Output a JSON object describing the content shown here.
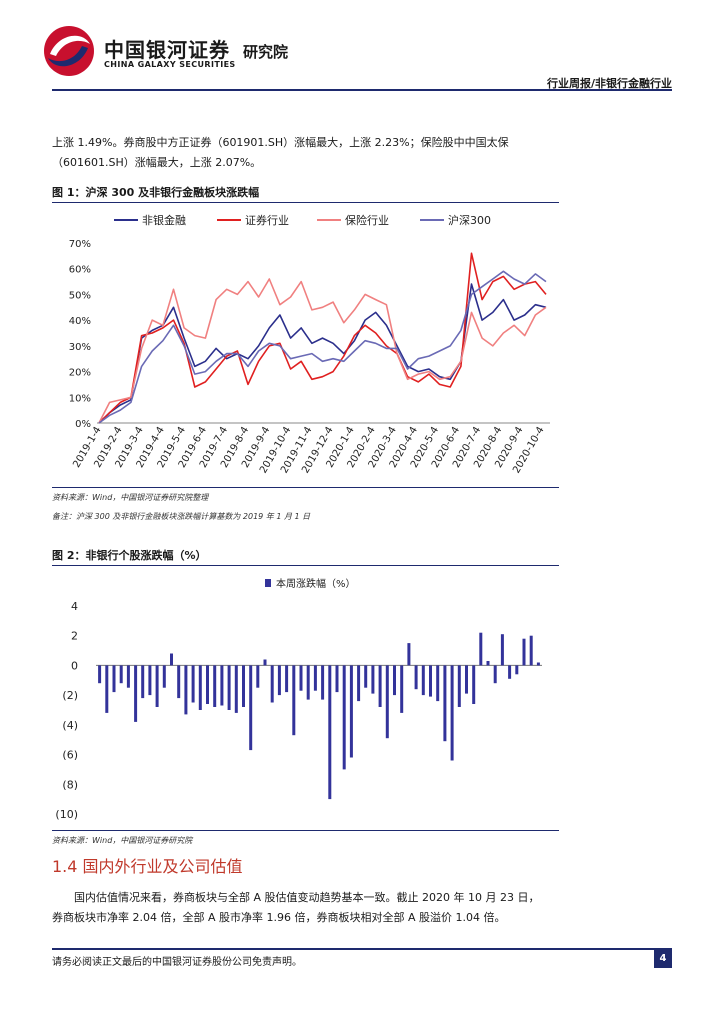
{
  "header": {
    "logo_cn": "中国银河证券",
    "logo_en": "CHINA GALAXY SECURITIES",
    "institute": "研究院",
    "doc_type": "行业周报/非银行金融行业"
  },
  "paragraph1": {
    "line1": "上涨 1.49%。券商股中方正证券（601901.SH）涨幅最大，上涨 2.23%；保险股中中国太保",
    "line2": "（601601.SH）涨幅最大，上涨 2.07%。"
  },
  "figure1": {
    "title": "图 1：沪深 300 及非银行金融板块涨跌幅",
    "source": "资料来源：Wind，中国银河证券研究院整理",
    "remark": "备注：沪深 300 及非银行金融板块涨跌幅计算基数为 2019 年 1 月 1 日"
  },
  "figure2": {
    "title": "图 2：非银行个股涨跌幅（%）",
    "source": "资料来源：Wind，中国银河证券研究院"
  },
  "section": {
    "title": "1.4 国内外行业及公司估值",
    "para_line1": "国内估值情况来看，券商板块与全部 A 股估值变动趋势基本一致。截止 2020 年 10 月 23 日，",
    "para_line2": "券商板块市净率 2.04 倍，全部 A 股市净率 1.96 倍，券商板块相对全部 A 股溢价 1.04 倍。"
  },
  "footer": {
    "disclaimer": "请务必阅读正文最后的中国银河证券股份公司免责声明。",
    "page": "4"
  },
  "colors": {
    "accent_navy": "#1e2a6e",
    "nonbank": "#2b2f8c",
    "brokerage": "#e02020",
    "insurance": "#f08080",
    "hs300": "#6a6ab5",
    "bar": "#33339a",
    "section_red": "#c0392b"
  },
  "chart_data": [
    {
      "type": "line",
      "title": "",
      "xlabel": "",
      "ylabel": "",
      "ylim": [
        0,
        70
      ],
      "y_ticks": [
        "0%",
        "10%",
        "20%",
        "30%",
        "40%",
        "50%",
        "60%",
        "70%"
      ],
      "x_tick_labels": [
        "2019-1-4",
        "2019-2-4",
        "2019-3-4",
        "2019-4-4",
        "2019-5-4",
        "2019-6-4",
        "2019-7-4",
        "2019-8-4",
        "2019-9-4",
        "2019-10-4",
        "2019-11-4",
        "2019-12-4",
        "2020-1-4",
        "2020-2-4",
        "2020-3-4",
        "2020-4-4",
        "2020-5-4",
        "2020-6-4",
        "2020-7-4",
        "2020-8-4",
        "2020-9-4",
        "2020-10-4"
      ],
      "legend_position": "top",
      "grid": false,
      "series": [
        {
          "name": "非银金融",
          "color": "#2b2f8c",
          "values": [
            0,
            4,
            7,
            9,
            33,
            36,
            38,
            45,
            33,
            22,
            24,
            29,
            25,
            27,
            25,
            30,
            37,
            42,
            33,
            37,
            31,
            33,
            31,
            27,
            32,
            40,
            43,
            38,
            30,
            22,
            20,
            21,
            18,
            17,
            24,
            54,
            40,
            43,
            48,
            40,
            42,
            46,
            45
          ]
        },
        {
          "name": "证券行业",
          "color": "#e02020",
          "values": [
            0,
            4,
            8,
            10,
            34,
            35,
            37,
            40,
            31,
            14,
            16,
            21,
            26,
            28,
            15,
            24,
            30,
            31,
            21,
            24,
            17,
            18,
            20,
            26,
            34,
            38,
            35,
            30,
            27,
            18,
            16,
            19,
            15,
            14,
            22,
            66,
            48,
            55,
            57,
            52,
            54,
            55,
            50
          ]
        },
        {
          "name": "保险行业",
          "color": "#f08080",
          "values": [
            0,
            8,
            9,
            10,
            29,
            40,
            38,
            52,
            37,
            34,
            33,
            48,
            52,
            50,
            55,
            49,
            56,
            46,
            49,
            55,
            44,
            45,
            47,
            39,
            44,
            50,
            48,
            46,
            27,
            17,
            19,
            20,
            17,
            18,
            24,
            43,
            33,
            30,
            35,
            38,
            34,
            42,
            45
          ]
        },
        {
          "name": "沪深300",
          "color": "#6a6ab5",
          "values": [
            0,
            3,
            5,
            8,
            22,
            28,
            32,
            38,
            30,
            19,
            20,
            24,
            27,
            27,
            22,
            28,
            31,
            30,
            25,
            26,
            27,
            24,
            25,
            24,
            28,
            32,
            31,
            29,
            29,
            21,
            25,
            26,
            28,
            30,
            36,
            50,
            53,
            56,
            59,
            56,
            54,
            58,
            55
          ]
        }
      ]
    },
    {
      "type": "bar",
      "title": "",
      "legend_label": "本周涨跌幅（%）",
      "ylim": [
        -10,
        4
      ],
      "y_ticks": [
        "4",
        "2",
        "0",
        "(2)",
        "(4)",
        "(6)",
        "(8)",
        "(10)"
      ],
      "series": [
        {
          "name": "本周涨跌幅（%）",
          "color": "#33339a",
          "values": [
            -1.2,
            -3.2,
            -1.8,
            -1.2,
            -1.5,
            -3.8,
            -2.2,
            -2.0,
            -2.8,
            -1.5,
            0.8,
            -2.2,
            -3.3,
            -2.5,
            -3.0,
            -2.6,
            -2.8,
            -2.7,
            -3.0,
            -3.2,
            -2.8,
            -5.7,
            -1.5,
            0.4,
            -2.5,
            -2.0,
            -1.8,
            -4.7,
            -1.7,
            -2.3,
            -1.7,
            -2.3,
            -9.0,
            -1.8,
            -7.0,
            -6.2,
            -2.4,
            -1.5,
            -1.9,
            -2.8,
            -4.9,
            -2.0,
            -3.2,
            1.5,
            -1.6,
            -2.0,
            -2.1,
            -2.4,
            -5.1,
            -6.4,
            -2.8,
            -1.9,
            -2.6,
            2.2,
            0.3,
            -1.2,
            2.1,
            -0.9,
            -0.6,
            1.8,
            2.0,
            0.2
          ]
        }
      ]
    }
  ]
}
